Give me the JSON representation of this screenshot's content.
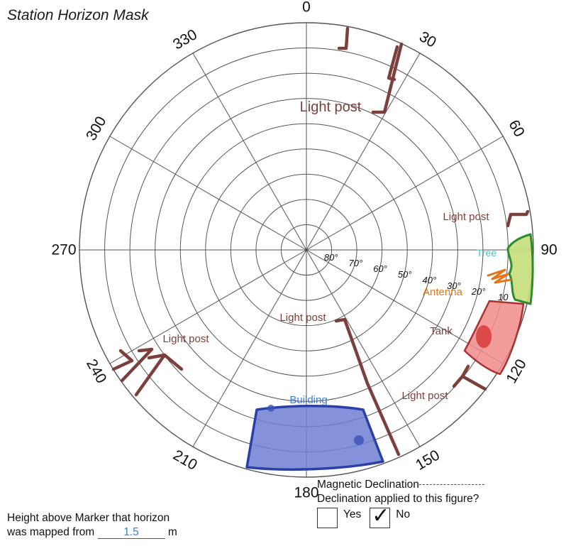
{
  "title": "Station Horizon Mask",
  "azimuth_labels": [
    "0",
    "30",
    "60",
    "90",
    "120",
    "150",
    "180",
    "210",
    "240",
    "270",
    "300",
    "330"
  ],
  "elevation_labels": [
    "80°",
    "70°",
    "60°",
    "50°",
    "40°",
    "30°",
    "20°",
    "10"
  ],
  "obstructions": {
    "light_post_1": "Light post",
    "light_post_2": "Light post",
    "light_post_3": "Light post",
    "light_post_4": "Light post",
    "light_post_5": "Light post",
    "tree": "Tree",
    "antenna": "Antenna",
    "tank": "Tank",
    "building": "Building"
  },
  "colors": {
    "light_post": "#7b3f3c",
    "tree_fill": "#c5de7a",
    "tree_outline": "#2e8b2e",
    "tree_label": "#45c3c0",
    "antenna": "#e3741b",
    "tank_fill": "#f08b8b",
    "tank_outline": "#a83232",
    "building_fill": "#6e7fd2",
    "building_outline": "#2a3fa8",
    "building_label": "#3a7fd0"
  },
  "footer": {
    "height_line1": "Height above Marker that horizon",
    "height_line2_prefix": "was mapped from",
    "height_value": "1.5",
    "height_unit": "m",
    "magnetic_declination": "Magnetic Declination",
    "declination_question": "Declination applied to this figure?",
    "yes_label": "Yes",
    "no_label": "No",
    "checked_option": "No"
  }
}
